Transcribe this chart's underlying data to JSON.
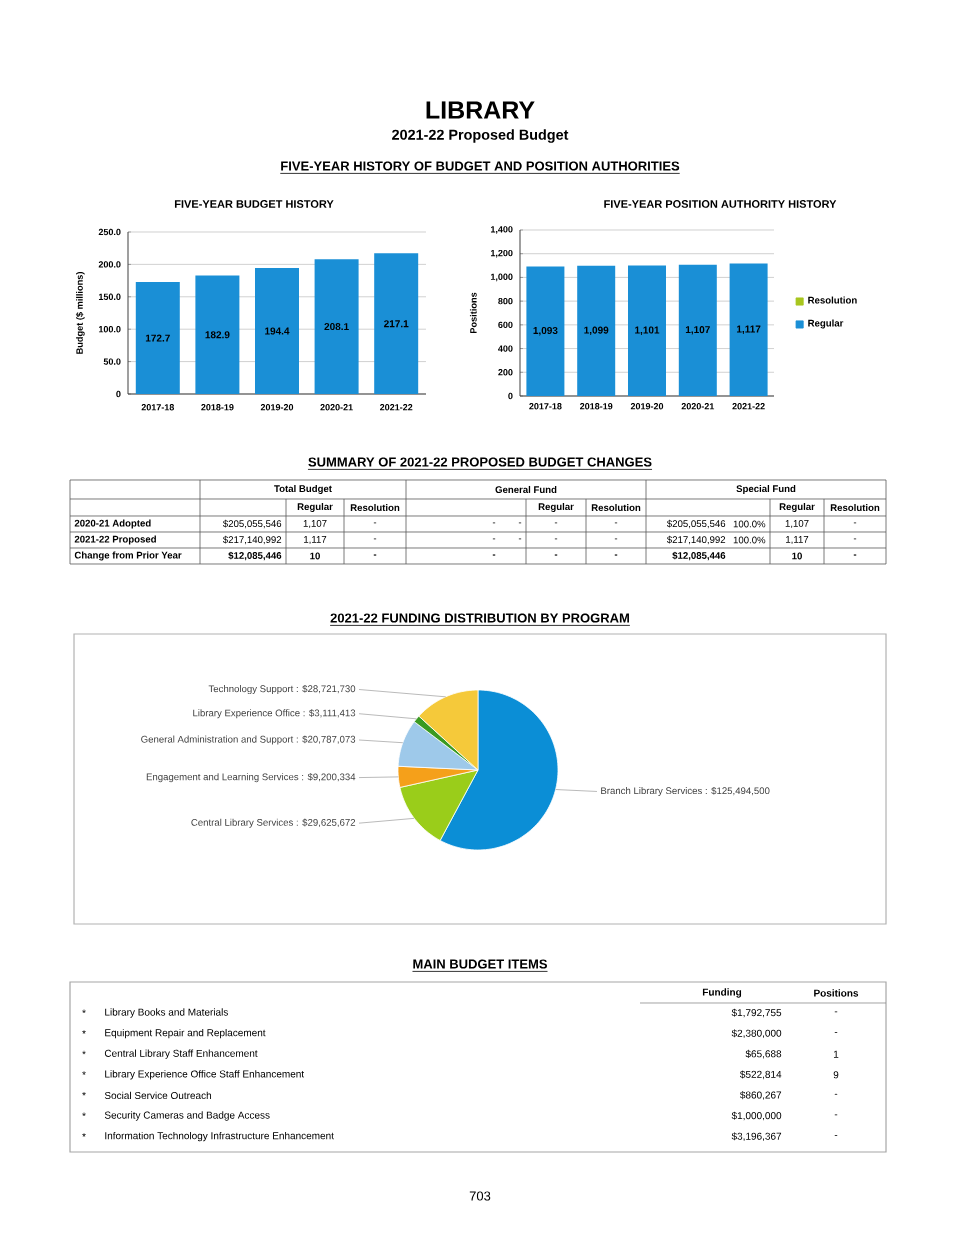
{
  "chart_data": [
    {
      "type": "other",
      "title": "LIBRARY",
      "subtitle": "2021-22 Proposed Budget",
      "annotations": [
        "FIVE-YEAR HISTORY OF BUDGET AND POSITION AUTHORITIES"
      ]
    },
    {
      "type": "bar",
      "title": "FIVE-YEAR BUDGET HISTORY",
      "ylabel": "Budget ($ millions)",
      "categories": [
        "2017-18",
        "2018-19",
        "2019-20",
        "2020-21",
        "2021-22"
      ],
      "values": [
        172.7,
        182.9,
        194.4,
        208.1,
        217.1
      ],
      "color": "#1a8fd6",
      "data_labels": true,
      "ylim": [
        0,
        250
      ],
      "yticks": [
        0,
        {
          "value": 50,
          "label": "50.0"
        },
        {
          "value": 100,
          "label": "100.0"
        },
        {
          "value": 150,
          "label": "150.0"
        },
        {
          "value": 200,
          "label": "200.0"
        },
        {
          "value": 250,
          "label": "250.0"
        }
      ],
      "grid": "y"
    },
    {
      "type": "bar",
      "title": "FIVE-YEAR POSITION AUTHORITY HISTORY",
      "ylabel": "Positions",
      "categories": [
        "2017-18",
        "2018-19",
        "2019-20",
        "2020-21",
        "2021-22"
      ],
      "series": [
        {
          "name": "Regular",
          "color": "#1a8fd6",
          "values": [
            1093,
            1099,
            1101,
            1107,
            1117
          ],
          "value_labels": [
            "1,093",
            "1,099",
            "1,101",
            "1,107",
            "1,117"
          ]
        },
        {
          "name": "Resolution",
          "color": "#a8c61e",
          "values": [
            null,
            null,
            null,
            null,
            null
          ]
        }
      ],
      "stacked": true,
      "ylim": [
        0,
        1400
      ],
      "yticks": [
        0,
        200,
        400,
        600,
        800,
        {
          "value": 1000,
          "label": "1,000"
        },
        {
          "value": 1200,
          "label": "1,200"
        },
        {
          "value": 1400,
          "label": "1,400"
        }
      ],
      "grid": "y",
      "legend": "right"
    },
    {
      "type": "other",
      "title": "SUMMARY OF 2021-22 PROPOSED BUDGET CHANGES",
      "cell_labels": [
        [
          null,
          "Total Budget",
          null,
          null,
          "General Fund",
          null,
          null,
          null,
          "Special Fund",
          null,
          null,
          null
        ],
        [
          null,
          null,
          "Regular",
          "Resolution",
          null,
          null,
          "Regular",
          "Resolution",
          null,
          null,
          "Regular",
          "Resolution"
        ],
        [
          "2020-21 Adopted",
          "$205,055,546",
          "1,107",
          "-",
          "-",
          "-",
          "-",
          "-",
          "$205,055,546",
          "100.0%",
          "1,107",
          "-"
        ],
        [
          "2021-22 Proposed",
          "$217,140,992",
          "1,117",
          "-",
          "-",
          "-",
          "-",
          "-",
          "$217,140,992",
          "100.0%",
          "1,117",
          "-"
        ],
        [
          "Change from Prior Year",
          "$12,085,446",
          "10",
          "-",
          "-",
          null,
          "-",
          "-",
          "$12,085,446",
          null,
          "10",
          "-"
        ]
      ]
    },
    {
      "type": "pie",
      "title": "2021-22 FUNDING DISTRIBUTION BY PROGRAM",
      "categories": [
        "Branch Library Services : $125,494,500",
        "Central Library Services : $29,625,672",
        "Engagement and Learning Services : $9,200,334",
        "General Administration and Support : $20,787,073",
        "Library Experience Office : $3,111,413",
        "Technology Support : $28,721,730"
      ],
      "values": [
        125494500,
        29625672,
        9200334,
        20787073,
        3111413,
        28721730
      ],
      "colors": [
        "#0b8ed6",
        "#9acd1a",
        "#f5a01a",
        "#9ec9ea",
        "#3a9a22",
        "#f5c93a"
      ]
    },
    {
      "type": "other",
      "title": "MAIN BUDGET ITEMS",
      "cell_labels": [
        [
          null,
          null,
          "Funding",
          "Positions"
        ],
        [
          "*",
          "Library Books and Materials",
          "$1,792,755",
          "-"
        ],
        [
          "*",
          "Equipment Repair and Replacement",
          "$2,380,000",
          "-"
        ],
        [
          "*",
          "Central Library Staff Enhancement",
          "$65,688",
          "1"
        ],
        [
          "*",
          "Library Experience Office Staff Enhancement",
          "$522,814",
          "9"
        ],
        [
          "*",
          "Social Service Outreach",
          "$860,267",
          "-"
        ],
        [
          "*",
          "Security Cameras and Badge Access",
          "$1,000,000",
          "-"
        ],
        [
          "*",
          "Information Technology Infrastructure Enhancement",
          "$3,196,367",
          "-"
        ]
      ],
      "annotations": [
        "703"
      ]
    }
  ]
}
